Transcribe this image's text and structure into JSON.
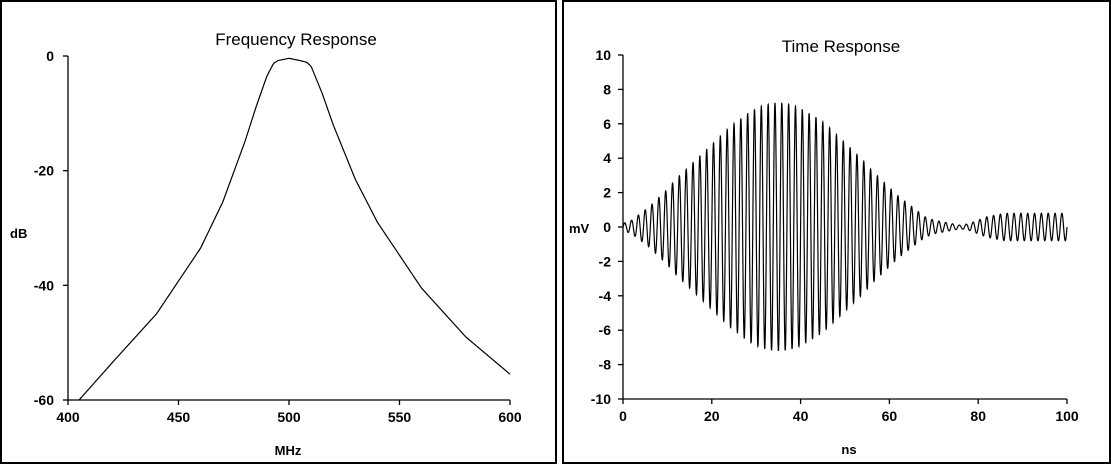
{
  "chart_data": [
    {
      "type": "line",
      "title": "Frequency Response",
      "xlabel": "MHz",
      "ylabel": "dB",
      "xlim": [
        400,
        600
      ],
      "ylim": [
        -60,
        0
      ],
      "xticks": [
        "400",
        "450",
        "500",
        "550",
        "600"
      ],
      "yticks": [
        "0",
        "-20",
        "-40",
        "-60"
      ],
      "grid": false,
      "series": [
        {
          "x": [
            405,
            420,
            440,
            460,
            470,
            480,
            485,
            490,
            493,
            495,
            500,
            505,
            508,
            510,
            515,
            520,
            530,
            540,
            560,
            580,
            600
          ],
          "values": [
            -60,
            -53.5,
            -45,
            -33.5,
            -25.5,
            -15,
            -9,
            -3.5,
            -1.3,
            -0.8,
            -0.4,
            -0.8,
            -1.1,
            -1.8,
            -6.5,
            -12,
            -21.5,
            -29,
            -40.5,
            -49,
            -55.5
          ]
        }
      ]
    },
    {
      "type": "line",
      "title": "Time Response",
      "xlabel": "ns",
      "ylabel": "mV",
      "xlim": [
        0,
        100
      ],
      "ylim": [
        -10,
        10
      ],
      "xticks": [
        "0",
        "20",
        "40",
        "60",
        "80",
        "100"
      ],
      "yticks": [
        "10",
        "8",
        "6",
        "4",
        "2",
        "0",
        "-2",
        "-4",
        "-6",
        "-8",
        "-10"
      ],
      "grid": false,
      "series": [
        {
          "name": "",
          "envelope_x": [
            0,
            2,
            4,
            6,
            8,
            10,
            12,
            14,
            16,
            18,
            20,
            22,
            24,
            26,
            28,
            30,
            32,
            34,
            36,
            38,
            40,
            42,
            44,
            46,
            48,
            50,
            52,
            54,
            56,
            58,
            60,
            62,
            64,
            66,
            68,
            70,
            72,
            74,
            76,
            78,
            80,
            82,
            84,
            86,
            88,
            90,
            92,
            94,
            96,
            98,
            100
          ],
          "envelope_values": [
            0.2,
            0.4,
            0.8,
            1.2,
            1.7,
            2.2,
            2.8,
            3.3,
            3.8,
            4.3,
            4.8,
            5.3,
            5.8,
            6.2,
            6.6,
            6.9,
            7.1,
            7.2,
            7.2,
            7.1,
            6.9,
            6.6,
            6.3,
            5.9,
            5.4,
            4.9,
            4.4,
            3.9,
            3.3,
            2.8,
            2.3,
            1.8,
            1.4,
            1.0,
            0.6,
            0.4,
            0.3,
            0.2,
            0.1,
            0.2,
            0.4,
            0.6,
            0.7,
            0.8,
            0.8,
            0.8,
            0.8,
            0.8,
            0.8,
            0.8,
            0.8
          ],
          "cycles_per_ns": 0.65
        }
      ]
    }
  ]
}
